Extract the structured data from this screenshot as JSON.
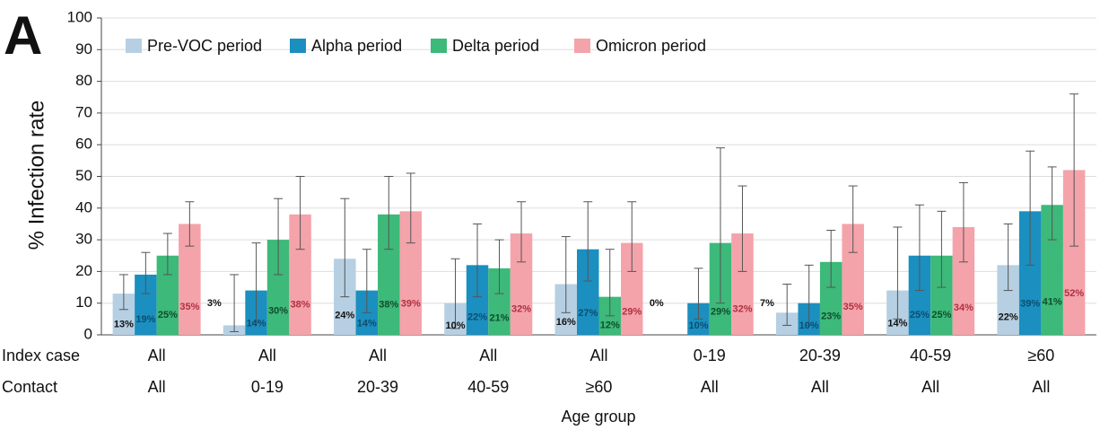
{
  "chart_data": {
    "type": "bar",
    "panel_label": "A",
    "y_label": "% Infection rate",
    "x_label": "Age group",
    "category_rows": [
      {
        "label": "Index case",
        "values": [
          "All",
          "All",
          "All",
          "All",
          "All",
          "0-19",
          "20-39",
          "40-59",
          "≥60"
        ]
      },
      {
        "label": "Contact",
        "values": [
          "All",
          "0-19",
          "20-39",
          "40-59",
          "≥60",
          "All",
          "All",
          "All",
          "All"
        ]
      }
    ],
    "ylim": [
      0,
      100
    ],
    "yticks": [
      0,
      10,
      20,
      30,
      40,
      50,
      60,
      70,
      80,
      90,
      100
    ],
    "grid": true,
    "legend": "top-left",
    "series": [
      {
        "name": "Pre-VOC period",
        "color": "#b6cfe2",
        "values": [
          13,
          3,
          24,
          10,
          16,
          0,
          7,
          14,
          22
        ],
        "value_labels": [
          "13%",
          "3%",
          "24%",
          "10%",
          "16%",
          "0%",
          "7%",
          "14%",
          "22%"
        ],
        "error_low": [
          8,
          1,
          12,
          2,
          7,
          null,
          3,
          5,
          14
        ],
        "error_high": [
          19,
          19,
          43,
          24,
          31,
          null,
          16,
          34,
          35
        ]
      },
      {
        "name": "Alpha period",
        "color": "#1b8fc0",
        "values": [
          19,
          14,
          14,
          22,
          27,
          10,
          10,
          25,
          39
        ],
        "value_labels": [
          "19%",
          "14%",
          "14%",
          "22%",
          "27%",
          "10%",
          "10%",
          "25%",
          "39%"
        ],
        "error_low": [
          13,
          4,
          7,
          12,
          17,
          5,
          3,
          14,
          22
        ],
        "error_high": [
          26,
          29,
          27,
          35,
          42,
          21,
          22,
          41,
          58
        ]
      },
      {
        "name": "Delta period",
        "color": "#3db97a",
        "values": [
          25,
          30,
          38,
          21,
          12,
          29,
          23,
          25,
          41
        ],
        "value_labels": [
          "25%",
          "30%",
          "38%",
          "21%",
          "12%",
          "29%",
          "23%",
          "25%",
          "41%"
        ],
        "error_low": [
          19,
          19,
          27,
          13,
          6,
          10,
          15,
          15,
          30
        ],
        "error_high": [
          32,
          43,
          50,
          30,
          27,
          59,
          33,
          39,
          53
        ]
      },
      {
        "name": "Omicron period",
        "color": "#f4a3aa",
        "values": [
          35,
          38,
          39,
          32,
          29,
          32,
          35,
          34,
          52
        ],
        "value_labels": [
          "35%",
          "38%",
          "39%",
          "32%",
          "29%",
          "32%",
          "35%",
          "34%",
          "52%"
        ],
        "error_low": [
          28,
          27,
          29,
          23,
          20,
          20,
          26,
          23,
          28
        ],
        "error_high": [
          42,
          50,
          51,
          42,
          42,
          47,
          47,
          48,
          76
        ]
      }
    ]
  }
}
